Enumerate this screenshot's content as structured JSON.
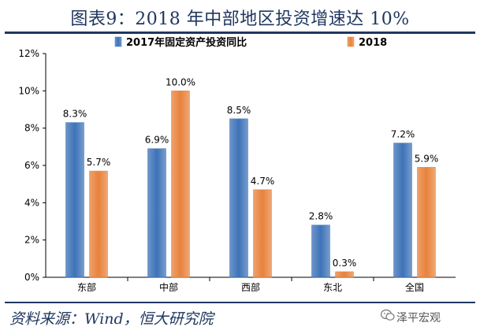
{
  "header": {
    "title": "图表9：2018 年中部地区投资增速达 10%"
  },
  "footer": {
    "source": "资料来源：Wind，恒大研究院",
    "watermark": "泽平宏观"
  },
  "icons": {
    "watermark_icon": "wechat-logo-icon"
  },
  "colors": {
    "series_2017": "#3d72b8",
    "series_2018": "#e8823c",
    "title": "#1f3760"
  },
  "chart_data": {
    "type": "bar",
    "title": "",
    "xlabel": "",
    "ylabel": "",
    "categories": [
      "东部",
      "中部",
      "西部",
      "东北",
      "全国"
    ],
    "series": [
      {
        "name": "2017年固定资产投资同比",
        "values": [
          8.3,
          6.9,
          8.5,
          2.8,
          7.2
        ],
        "labels": [
          "8.3%",
          "6.9%",
          "8.5%",
          "2.8%",
          "7.2%"
        ]
      },
      {
        "name": "2018",
        "values": [
          5.7,
          10.0,
          4.7,
          0.3,
          5.9
        ],
        "labels": [
          "5.7%",
          "10.0%",
          "4.7%",
          "0.3%",
          "5.9%"
        ]
      }
    ],
    "ylim": [
      0,
      12
    ],
    "yticks": [
      "0%",
      "2%",
      "4%",
      "6%",
      "8%",
      "10%",
      "12%"
    ],
    "grid": false,
    "legend": "top"
  }
}
